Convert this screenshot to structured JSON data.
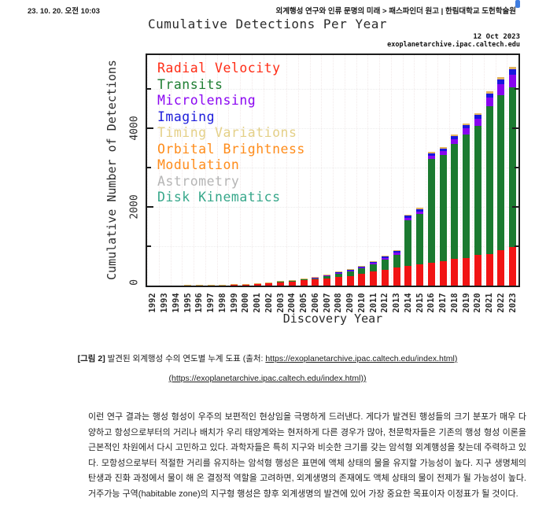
{
  "header": {
    "timestamp": "23. 10. 20. 오전 10:03",
    "doc_title": "외계행성 연구와 인류 문명의 미래 > 패스파인더 원고 | 한림대학교 도헌학술원"
  },
  "chart": {
    "title": "Cumulative Detections Per Year",
    "date": "12 Oct 2023",
    "source": "exoplanetarchive.ipac.caltech.edu",
    "y_axis_label": "Cumulative Number of Detections",
    "x_axis_label": "Discovery Year"
  },
  "chart_data": {
    "type": "bar",
    "stacked": true,
    "title": "Cumulative Detections Per Year",
    "xlabel": "Discovery Year",
    "ylabel": "Cumulative Number of Detections",
    "ylim": [
      0,
      5860
    ],
    "yticks_major": [
      0,
      2000,
      4000
    ],
    "yticks_minor": [
      1000,
      3000,
      5000
    ],
    "grid": true,
    "legend_position": "upper left",
    "categories": [
      1992,
      1993,
      1994,
      1995,
      1996,
      1997,
      1998,
      1999,
      2000,
      2001,
      2002,
      2003,
      2004,
      2005,
      2006,
      2007,
      2008,
      2009,
      2010,
      2011,
      2012,
      2013,
      2014,
      2015,
      2016,
      2017,
      2018,
      2019,
      2020,
      2021,
      2022,
      2023
    ],
    "series": [
      {
        "name": "Radial Velocity",
        "color": "#f11414",
        "values": [
          0,
          0,
          0,
          1,
          6,
          8,
          14,
          24,
          36,
          48,
          70,
          90,
          110,
          140,
          165,
          190,
          215,
          245,
          295,
          355,
          405,
          460,
          505,
          540,
          575,
          625,
          675,
          705,
          775,
          805,
          905,
          980
        ]
      },
      {
        "name": "Transits",
        "color": "#1b7a30",
        "values": [
          0,
          0,
          0,
          0,
          0,
          0,
          0,
          1,
          2,
          3,
          10,
          17,
          22,
          25,
          31,
          52,
          84,
          108,
          136,
          185,
          259,
          328,
          1165,
          1282,
          2647,
          2701,
          2929,
          3137,
          3285,
          3747,
          3933,
          4054
        ]
      },
      {
        "name": "Microlensing",
        "color": "#8805ef",
        "values": [
          0,
          0,
          0,
          0,
          0,
          0,
          0,
          0,
          0,
          0,
          0,
          1,
          3,
          6,
          10,
          14,
          18,
          22,
          26,
          32,
          38,
          44,
          52,
          62,
          74,
          90,
          120,
          150,
          180,
          220,
          280,
          320
        ]
      },
      {
        "name": "Imaging",
        "color": "#1717dd",
        "values": [
          0,
          0,
          0,
          0,
          0,
          0,
          0,
          0,
          0,
          0,
          0,
          1,
          4,
          8,
          12,
          16,
          24,
          30,
          36,
          42,
          48,
          54,
          58,
          62,
          66,
          72,
          80,
          88,
          96,
          110,
          130,
          150
        ]
      },
      {
        "name": "Timing Variations / Orbital Brightness Modulation / Astrometry / Disk Kinematics",
        "color": "#e2b45f",
        "values": [
          2,
          3,
          4,
          4,
          4,
          4,
          4,
          5,
          5,
          5,
          5,
          6,
          6,
          6,
          7,
          8,
          9,
          10,
          12,
          16,
          20,
          24,
          30,
          34,
          38,
          42,
          46,
          50,
          54,
          58,
          62,
          66
        ]
      }
    ],
    "legend": [
      {
        "label": "Radial Velocity",
        "color": "#ff2b14"
      },
      {
        "label": "Transits",
        "color": "#1e7d32"
      },
      {
        "label": "Microlensing",
        "color": "#8a05f2"
      },
      {
        "label": "Imaging",
        "color": "#1c1cdb"
      },
      {
        "label": "Timing Variations",
        "color": "#e4d088"
      },
      {
        "label": "Orbital Brightness",
        "color": "#ff8c1a"
      },
      {
        "label": "Modulation",
        "color": "#ff8c1a"
      },
      {
        "label": "Astrometry",
        "color": "#b5b5b5"
      },
      {
        "label": "Disk Kinematics",
        "color": "#36a78a"
      }
    ]
  },
  "caption": {
    "prefix": "[그림 2]",
    "text": " 발견된 외계행성 수의 연도별 누계 도표 (출처: ",
    "link1": "https://exoplanetarchive.ipac.caltech.edu/index.html)",
    "link2": "(https://exoplanetarchive.ipac.caltech.edu/index.html))"
  },
  "body": {
    "paragraph": "이런 연구 결과는 행성 형성이 우주의 보편적인 현상임을 극명하게 드러낸다. 게다가 발견된 행성들의 크기 분포가 매우 다양하고 항성으로부터의 거리나 배치가 우리 태양계와는 현저하게 다른 경우가 많아, 천문학자들은 기존의 행성 형성 이론을 근본적인 차원에서 다시 고민하고 있다. 과학자들은 특히 지구와 비슷한 크기를 갖는 암석형 외계행성을 찾는데 주력하고 있다. 모항성으로부터 적절한 거리를 유지하는 암석형 행성은 표면에 액체 상태의 물을 유지할 가능성이 높다. 지구 생명체의 탄생과 진화 과정에서 물이 해 온 결정적 역할을 고려하면, 외계생명의 존재에도 액체 상태의 물이 전제가 될 가능성이 높다. 거주가능 구역(habitable zone)의 지구형 행성은 향후 외계생명의 발견에 있어 가장 중요한 목표이자 이정표가 될 것이다."
  }
}
